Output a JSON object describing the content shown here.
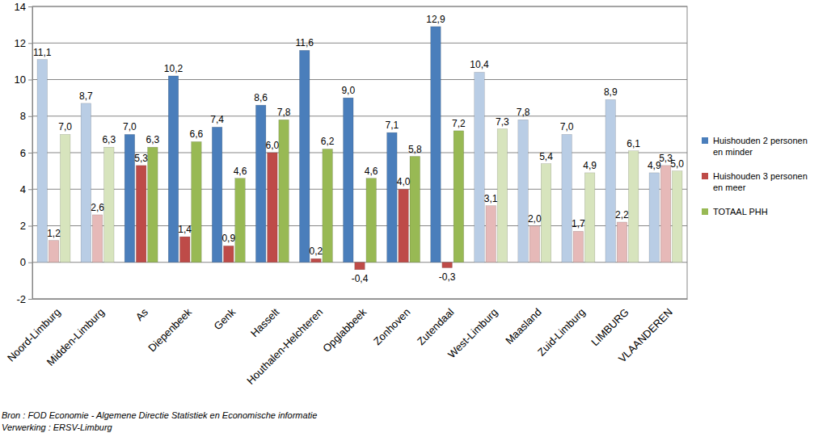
{
  "chart_data": {
    "type": "bar",
    "categories": [
      "Noord-Limburg",
      "Midden-Limburg",
      "As",
      "Diepenbeek",
      "Genk",
      "Hasselt",
      "Houthalen-Helchteren",
      "Opglabbeek",
      "Zonhoven",
      "Zutendaal",
      "West-Limburg",
      "Maasland",
      "Zuid-Limburg",
      "LIMBURG",
      "VLAANDEREN"
    ],
    "series": [
      {
        "name": "Huishouden 2 personen en minder",
        "color": "#4a7ebb",
        "colors": [
          "#b9cde5",
          "#b9cde5",
          "#4a7ebb",
          "#4a7ebb",
          "#4a7ebb",
          "#4a7ebb",
          "#4a7ebb",
          "#4a7ebb",
          "#4a7ebb",
          "#4a7ebb",
          "#b9cde5",
          "#b9cde5",
          "#b9cde5",
          "#b9cde5",
          "#b9cde5"
        ],
        "values": [
          11.1,
          8.7,
          7.0,
          10.2,
          7.4,
          8.6,
          11.6,
          9.0,
          7.1,
          12.9,
          10.4,
          7.8,
          7.0,
          8.9,
          4.9
        ],
        "value_labels": [
          "11,1",
          "8,7",
          "7,0",
          "10,2",
          "7,4",
          "8,6",
          "11,6",
          "9,0",
          "7,1",
          "12,9",
          "10,4",
          "7,8",
          "7,0",
          "8,9",
          "4,9"
        ]
      },
      {
        "name": "Huishouden 3 personen en meer",
        "color": "#be4b48",
        "colors": [
          "#e6b9b8",
          "#e6b9b8",
          "#be4b48",
          "#be4b48",
          "#be4b48",
          "#be4b48",
          "#be4b48",
          "#be4b48",
          "#be4b48",
          "#be4b48",
          "#e6b9b8",
          "#e6b9b8",
          "#e6b9b8",
          "#e6b9b8",
          "#e6b9b8"
        ],
        "values": [
          1.2,
          2.6,
          5.3,
          1.4,
          0.9,
          6.0,
          0.2,
          -0.4,
          4.0,
          -0.3,
          3.1,
          2.0,
          1.7,
          2.2,
          5.3
        ],
        "value_labels": [
          "1,2",
          "2,6",
          "5,3",
          "1,4",
          "0,9",
          "6,0",
          "0,2",
          "-0,4",
          "4,0",
          "-0,3",
          "3,1",
          "2,0",
          "1,7",
          "2,2",
          "5,3"
        ]
      },
      {
        "name": "TOTAAL PHH",
        "color": "#98b954",
        "colors": [
          "#d7e4bd",
          "#d7e4bd",
          "#98b954",
          "#98b954",
          "#98b954",
          "#98b954",
          "#98b954",
          "#98b954",
          "#98b954",
          "#98b954",
          "#d7e4bd",
          "#d7e4bd",
          "#d7e4bd",
          "#d7e4bd",
          "#d7e4bd"
        ],
        "values": [
          7.0,
          6.3,
          6.3,
          6.6,
          4.6,
          7.8,
          6.2,
          4.6,
          5.8,
          7.2,
          7.3,
          5.4,
          4.9,
          6.1,
          5.0
        ],
        "value_labels": [
          "7,0",
          "6,3",
          "6,3",
          "6,6",
          "4,6",
          "7,8",
          "6,2",
          "4,6",
          "5,8",
          "7,2",
          "7,3",
          "5,4",
          "4,9",
          "6,1",
          "5,0"
        ]
      }
    ],
    "ylim": [
      -2,
      14
    ],
    "yticks": [
      -2,
      0,
      2,
      4,
      6,
      8,
      10,
      12,
      14
    ],
    "grid": true,
    "data_labels": true,
    "legend": "right",
    "annotations": [
      "Bron : FOD Economie - Algemene Directie Statistiek en Economische informatie",
      "Verwerking : ERSV-Limburg"
    ]
  }
}
